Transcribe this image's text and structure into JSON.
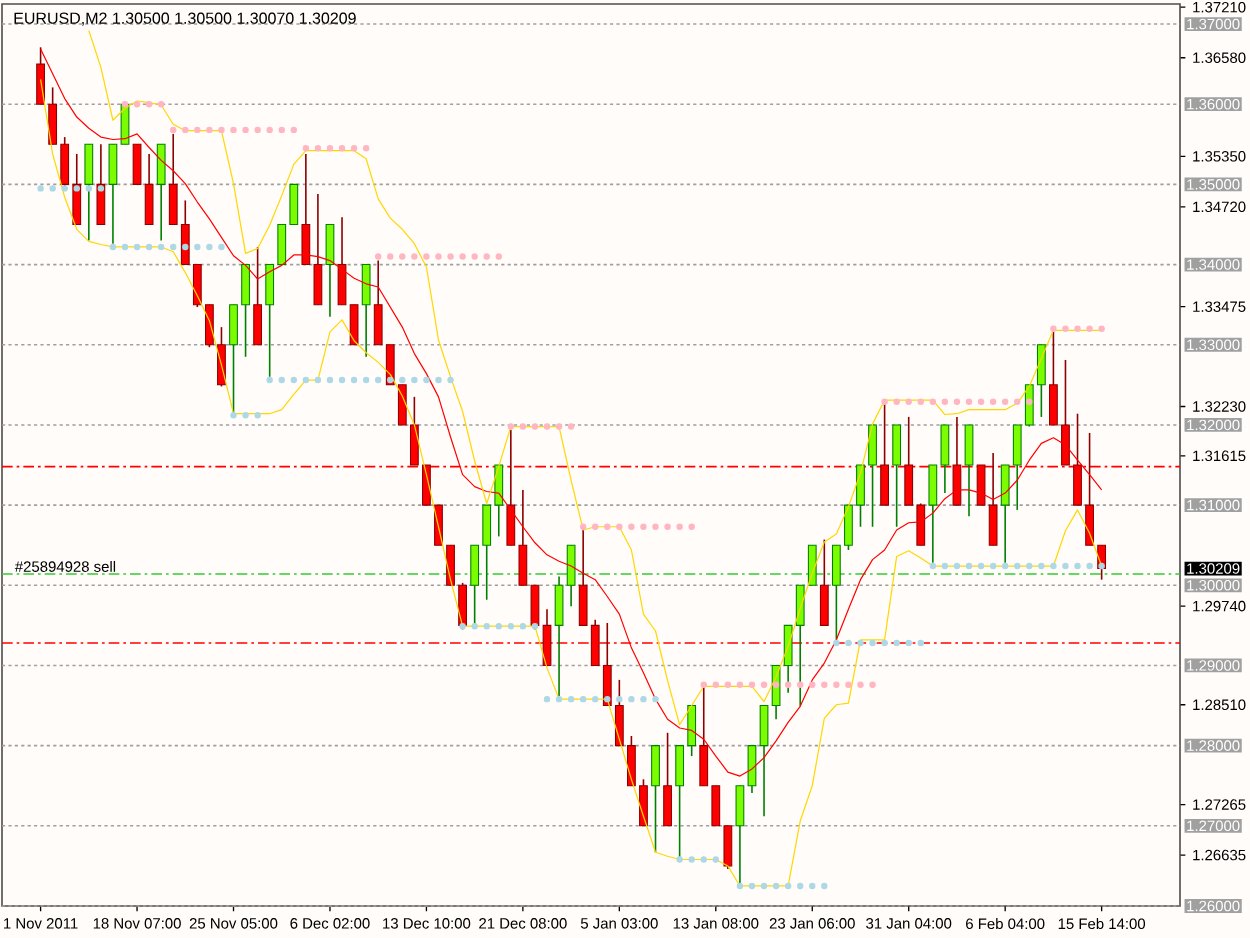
{
  "chart_data": {
    "type": "candlestick",
    "title": "EURUSD,M2 1.30500 1.30500 1.30070 1.30209",
    "categories": [
      "1 Nov 2011",
      null,
      null,
      null,
      null,
      null,
      null,
      null,
      "18 Nov 07:00",
      null,
      null,
      null,
      null,
      null,
      null,
      null,
      "25 Nov 05:00",
      null,
      null,
      null,
      null,
      null,
      null,
      null,
      "6 Dec 02:00",
      null,
      null,
      null,
      null,
      null,
      null,
      null,
      "13 Dec 10:00",
      null,
      null,
      null,
      null,
      null,
      null,
      null,
      "21 Dec 08:00",
      null,
      null,
      null,
      null,
      null,
      null,
      null,
      "5 Jan 03:00",
      null,
      null,
      null,
      null,
      null,
      null,
      null,
      "13 Jan 08:00",
      null,
      null,
      null,
      null,
      null,
      null,
      null,
      "23 Jan 06:00",
      null,
      null,
      null,
      null,
      null,
      null,
      null,
      "31 Jan 04:00",
      null,
      null,
      null,
      null,
      null,
      null,
      null,
      "6 Feb 04:00",
      null,
      null,
      null,
      null,
      null,
      null,
      null,
      "15 Feb 14:00"
    ],
    "ohlc": [
      [
        1.365,
        1.3671,
        1.36,
        1.36
      ],
      [
        1.36,
        1.3621,
        1.355,
        1.355
      ],
      [
        1.355,
        1.3559,
        1.3497,
        1.35
      ],
      [
        1.35,
        1.3538,
        1.345,
        1.345
      ],
      [
        1.35,
        1.355,
        1.343,
        1.355
      ],
      [
        1.35,
        1.355,
        1.345,
        1.345
      ],
      [
        1.35,
        1.355,
        1.3426,
        1.355
      ],
      [
        1.355,
        1.36,
        1.355,
        1.36
      ],
      [
        1.355,
        1.355,
        1.35,
        1.35
      ],
      [
        1.35,
        1.3538,
        1.345,
        1.345
      ],
      [
        1.35,
        1.355,
        1.343,
        1.355
      ],
      [
        1.35,
        1.3563,
        1.345,
        1.345
      ],
      [
        1.345,
        1.348,
        1.34,
        1.34
      ],
      [
        1.34,
        1.34,
        1.3347,
        1.335
      ],
      [
        1.335,
        1.335,
        1.3297,
        1.33
      ],
      [
        1.33,
        1.3322,
        1.3248,
        1.325
      ],
      [
        1.33,
        1.335,
        1.3214,
        1.335
      ],
      [
        1.335,
        1.34,
        1.3285,
        1.34
      ],
      [
        1.335,
        1.3422,
        1.33,
        1.33
      ],
      [
        1.335,
        1.34,
        1.326,
        1.34
      ],
      [
        1.34,
        1.345,
        1.34,
        1.345
      ],
      [
        1.345,
        1.35,
        1.345,
        1.35
      ],
      [
        1.345,
        1.3538,
        1.34,
        1.34
      ],
      [
        1.34,
        1.3488,
        1.335,
        1.335
      ],
      [
        1.34,
        1.345,
        1.3335,
        1.345
      ],
      [
        1.34,
        1.3459,
        1.335,
        1.335
      ],
      [
        1.335,
        1.335,
        1.33,
        1.33
      ],
      [
        1.335,
        1.34,
        1.3285,
        1.34
      ],
      [
        1.335,
        1.3405,
        1.33,
        1.33
      ],
      [
        1.33,
        1.33,
        1.325,
        1.325
      ],
      [
        1.325,
        1.325,
        1.32,
        1.32
      ],
      [
        1.32,
        1.3235,
        1.315,
        1.315
      ],
      [
        1.315,
        1.315,
        1.31,
        1.31
      ],
      [
        1.31,
        1.31,
        1.305,
        1.305
      ],
      [
        1.305,
        1.305,
        1.3,
        1.3
      ],
      [
        1.3,
        1.3003,
        1.2945,
        1.295
      ],
      [
        1.3,
        1.305,
        1.295,
        1.305
      ],
      [
        1.305,
        1.31,
        1.2982,
        1.31
      ],
      [
        1.31,
        1.315,
        1.3061,
        1.315
      ],
      [
        1.31,
        1.3194,
        1.305,
        1.305
      ],
      [
        1.305,
        1.3119,
        1.3,
        1.3
      ],
      [
        1.3,
        1.3,
        1.2945,
        1.295
      ],
      [
        1.295,
        1.297,
        1.29,
        1.29
      ],
      [
        1.295,
        1.3011,
        1.2862,
        1.3
      ],
      [
        1.3,
        1.305,
        1.2974,
        1.305
      ],
      [
        1.3,
        1.3073,
        1.295,
        1.295
      ],
      [
        1.295,
        1.2957,
        1.29,
        1.29
      ],
      [
        1.29,
        1.2953,
        1.285,
        1.285
      ],
      [
        1.285,
        1.2882,
        1.28,
        1.28
      ],
      [
        1.28,
        1.2812,
        1.275,
        1.275
      ],
      [
        1.275,
        1.2758,
        1.27,
        1.27
      ],
      [
        1.275,
        1.28,
        1.2667,
        1.28
      ],
      [
        1.275,
        1.2816,
        1.27,
        1.27
      ],
      [
        1.275,
        1.28,
        1.2658,
        1.28
      ],
      [
        1.28,
        1.285,
        1.2787,
        1.285
      ],
      [
        1.28,
        1.2874,
        1.275,
        1.275
      ],
      [
        1.275,
        1.275,
        1.27,
        1.27
      ],
      [
        1.27,
        1.27,
        1.2646,
        1.265
      ],
      [
        1.27,
        1.275,
        1.2625,
        1.275
      ],
      [
        1.275,
        1.28,
        1.2741,
        1.28
      ],
      [
        1.28,
        1.285,
        1.2712,
        1.285
      ],
      [
        1.285,
        1.29,
        1.2833,
        1.29
      ],
      [
        1.29,
        1.295,
        1.2866,
        1.295
      ],
      [
        1.295,
        1.3,
        1.2849,
        1.3
      ],
      [
        1.3,
        1.305,
        1.3,
        1.305
      ],
      [
        1.3,
        1.3057,
        1.295,
        1.295
      ],
      [
        1.3,
        1.305,
        1.2932,
        1.305
      ],
      [
        1.305,
        1.31,
        1.3044,
        1.31
      ],
      [
        1.31,
        1.315,
        1.3073,
        1.315
      ],
      [
        1.315,
        1.32,
        1.3073,
        1.32
      ],
      [
        1.315,
        1.3227,
        1.31,
        1.31
      ],
      [
        1.315,
        1.32,
        1.3073,
        1.32
      ],
      [
        1.315,
        1.321,
        1.31,
        1.31
      ],
      [
        1.31,
        1.3102,
        1.305,
        1.305
      ],
      [
        1.31,
        1.315,
        1.3028,
        1.315
      ],
      [
        1.315,
        1.32,
        1.3115,
        1.32
      ],
      [
        1.315,
        1.321,
        1.31,
        1.31
      ],
      [
        1.315,
        1.32,
        1.3086,
        1.32
      ],
      [
        1.315,
        1.315,
        1.31,
        1.31
      ],
      [
        1.31,
        1.3165,
        1.305,
        1.305
      ],
      [
        1.31,
        1.315,
        1.3028,
        1.315
      ],
      [
        1.315,
        1.32,
        1.3094,
        1.32
      ],
      [
        1.32,
        1.325,
        1.3198,
        1.325
      ],
      [
        1.325,
        1.33,
        1.321,
        1.33
      ],
      [
        1.325,
        1.3318,
        1.32,
        1.32
      ],
      [
        1.32,
        1.3281,
        1.315,
        1.315
      ],
      [
        1.315,
        1.3214,
        1.31,
        1.31
      ],
      [
        1.31,
        1.319,
        1.305,
        1.305
      ],
      [
        1.305,
        1.305,
        1.3007,
        1.30209
      ]
    ],
    "series": [
      {
        "type": "line",
        "color": "#ff0000",
        "values": [
          1.3669,
          1.3638,
          1.3607,
          1.3584,
          1.357,
          1.3559,
          1.3556,
          1.3557,
          1.3563,
          1.3546,
          1.353,
          1.3517,
          1.3501,
          1.3478,
          1.3457,
          1.3434,
          1.3411,
          1.3399,
          1.3382,
          1.3391,
          1.3399,
          1.3412,
          1.3412,
          1.341,
          1.3405,
          1.3394,
          1.3383,
          1.3376,
          1.3372,
          1.3347,
          1.3322,
          1.3289,
          1.3264,
          1.3235,
          1.3185,
          1.3138,
          1.3123,
          1.3117,
          1.3115,
          1.3094,
          1.3073,
          1.3053,
          1.3038,
          1.303,
          1.3024,
          1.3015,
          1.3007,
          1.2986,
          1.2964,
          1.2922,
          1.2891,
          1.2858,
          1.2833,
          1.2822,
          1.2819,
          1.2808,
          1.2787,
          1.2767,
          1.2762,
          1.2771,
          1.2785,
          1.2806,
          1.2829,
          1.2849,
          1.2882,
          1.2903,
          1.2932,
          1.297,
          1.3007,
          1.3032,
          1.3044,
          1.3069,
          1.3078,
          1.3079,
          1.309,
          1.3108,
          1.3119,
          1.3119,
          1.3115,
          1.3107,
          1.3115,
          1.3131,
          1.3156,
          1.3177,
          1.3184,
          1.3175,
          1.3156,
          1.3138,
          1.3119
        ]
      },
      {
        "type": "line",
        "color": "#ffd700",
        "values": [
          null,
          null,
          null,
          null,
          1.3692,
          1.3646,
          1.358,
          1.3595,
          1.3604,
          1.3602,
          1.3599,
          1.3575,
          1.3567,
          1.3567,
          1.3567,
          1.3567,
          1.3501,
          1.3414,
          1.342,
          1.3449,
          1.3486,
          1.3525,
          1.3542,
          1.3542,
          1.3542,
          1.3542,
          1.3542,
          1.3532,
          1.3482,
          1.3458,
          1.3444,
          1.3426,
          1.3397,
          1.3306,
          1.326,
          1.3217,
          1.3155,
          1.3102,
          1.3148,
          1.3198,
          1.3198,
          1.3198,
          1.3198,
          1.3198,
          1.3131,
          1.3069,
          1.3073,
          1.3073,
          1.3073,
          1.3044,
          1.2964,
          1.2943,
          1.2881,
          1.2826,
          1.285,
          1.2874,
          1.2874,
          1.2874,
          1.2874,
          1.2874,
          1.2855,
          1.2886,
          1.2924,
          1.2971,
          1.3015,
          1.3054,
          1.3064,
          1.3098,
          1.314,
          1.3201,
          1.3231,
          1.3231,
          1.3231,
          1.3231,
          1.3231,
          1.3213,
          1.3214,
          1.3219,
          1.3219,
          1.3219,
          1.3219,
          1.3227,
          1.3248,
          1.3283,
          1.3318,
          1.3318,
          1.3318,
          1.3318,
          1.3318
        ]
      },
      {
        "type": "line",
        "color": "#ffd700",
        "values": [
          1.3631,
          1.3538,
          1.3484,
          1.3444,
          1.3429,
          1.3425,
          1.3422,
          1.3422,
          1.3422,
          1.3422,
          1.3422,
          1.3416,
          1.339,
          1.3361,
          1.333,
          1.3275,
          1.3214,
          1.3214,
          1.3214,
          1.3214,
          1.3219,
          1.3238,
          1.3256,
          1.3256,
          1.3316,
          1.3331,
          1.3305,
          1.329,
          1.3278,
          1.3263,
          1.3236,
          1.32,
          1.3138,
          1.3073,
          1.3007,
          1.2949,
          1.2949,
          1.2949,
          1.2949,
          1.2949,
          1.2949,
          1.2949,
          1.2897,
          1.2858,
          1.2858,
          1.2858,
          1.2858,
          1.2858,
          1.2808,
          1.2758,
          1.2712,
          1.2667,
          1.2662,
          1.2658,
          1.2658,
          1.2658,
          1.2658,
          1.265,
          1.2625,
          1.2625,
          1.2625,
          1.2625,
          1.2625,
          1.2706,
          1.275,
          1.2834,
          1.2851,
          1.2853,
          1.2932,
          1.2932,
          1.2932,
          1.3036,
          1.3043,
          1.3034,
          1.3024,
          1.3024,
          1.3024,
          1.3024,
          1.3024,
          1.3024,
          1.3024,
          1.3024,
          1.3024,
          1.3024,
          1.3024,
          1.3068,
          1.3094,
          1.3065,
          1.3024
        ]
      },
      {
        "type": "scatter",
        "color": "#ffb6c1",
        "values": [
          null,
          null,
          null,
          null,
          null,
          null,
          null,
          1.36,
          1.36,
          1.36,
          1.36,
          1.3568,
          1.3568,
          1.3568,
          1.3568,
          1.3568,
          1.3568,
          1.3568,
          1.3568,
          1.3568,
          1.3568,
          1.3568,
          1.3545,
          1.3545,
          1.3545,
          1.3545,
          1.3545,
          1.3545,
          1.341,
          1.341,
          1.341,
          1.341,
          1.341,
          1.341,
          1.341,
          1.341,
          1.341,
          1.341,
          1.341,
          1.3198,
          1.3198,
          1.3198,
          1.3198,
          1.3198,
          1.3198,
          1.3073,
          1.3073,
          1.3073,
          1.3073,
          1.3073,
          1.3073,
          1.3073,
          1.3073,
          1.3073,
          1.3073,
          1.2876,
          1.2876,
          1.2876,
          1.2876,
          1.2876,
          1.2876,
          1.2876,
          1.2876,
          1.2876,
          1.2876,
          1.2876,
          1.2876,
          1.2876,
          1.2876,
          1.2876,
          1.3229,
          1.3229,
          1.3229,
          1.3229,
          1.3229,
          1.3229,
          1.3229,
          1.3229,
          1.3229,
          1.3229,
          1.3229,
          1.3229,
          1.3229,
          null,
          1.332,
          1.332,
          1.332,
          1.332,
          1.332
        ]
      },
      {
        "type": "scatter",
        "color": "#add8e6",
        "values": [
          1.3495,
          1.3495,
          1.3495,
          1.3495,
          1.3495,
          1.3495,
          1.3422,
          1.3422,
          1.3422,
          1.3422,
          1.3422,
          1.3422,
          1.3422,
          1.3422,
          1.3422,
          1.3422,
          1.3212,
          1.3212,
          1.3212,
          1.3256,
          1.3256,
          1.3256,
          1.3256,
          1.3256,
          1.3256,
          1.3256,
          1.3256,
          1.3256,
          1.3256,
          1.3256,
          1.3256,
          1.3256,
          1.3256,
          1.3256,
          1.3256,
          1.2949,
          1.2949,
          1.2949,
          1.2949,
          1.2949,
          1.2949,
          1.2949,
          1.2858,
          1.2858,
          1.2858,
          1.2858,
          1.2858,
          1.2858,
          1.2858,
          1.2858,
          1.2858,
          1.2858,
          null,
          1.2658,
          1.2658,
          1.2658,
          1.2658,
          null,
          1.2625,
          1.2625,
          1.2625,
          1.2625,
          1.2625,
          1.2625,
          1.2625,
          1.2625,
          1.2928,
          1.2928,
          1.2928,
          1.2928,
          1.2928,
          1.2928,
          1.2928,
          1.2928,
          1.3024,
          1.3024,
          1.3024,
          1.3024,
          1.3024,
          1.3024,
          1.3024,
          1.3024,
          1.3024,
          1.3024,
          1.3024,
          1.3024,
          1.3024,
          1.3024,
          1.3024
        ]
      }
    ],
    "ylim": [
      1.26,
      1.3725
    ],
    "yticks": [
      {
        "value": 1.3721,
        "label": "1.37210"
      },
      {
        "value": 1.3658,
        "label": "1.36580"
      },
      {
        "value": 1.3535,
        "label": "1.35350"
      },
      {
        "value": 1.3472,
        "label": "1.34720"
      },
      {
        "value": 1.33475,
        "label": "1.33475"
      },
      {
        "value": 1.3223,
        "label": "1.32230"
      },
      {
        "value": 1.31615,
        "label": "1.31615"
      },
      {
        "value": 1.2974,
        "label": "1.29740"
      },
      {
        "value": 1.2851,
        "label": "1.28510"
      },
      {
        "value": 1.27265,
        "label": "1.27265"
      },
      {
        "value": 1.26635,
        "label": "1.26635"
      }
    ],
    "ref_lines": [
      {
        "axis": "y",
        "value": 1.37,
        "label": "1.37000",
        "color": "#a0a0a0",
        "line_style": "dotted"
      },
      {
        "axis": "y",
        "value": 1.36,
        "label": "1.36000",
        "color": "#a0a0a0",
        "line_style": "dotted"
      },
      {
        "axis": "y",
        "value": 1.35,
        "label": "1.35000",
        "color": "#a0a0a0",
        "line_style": "dotted"
      },
      {
        "axis": "y",
        "value": 1.34,
        "label": "1.34000",
        "color": "#a0a0a0",
        "line_style": "dotted"
      },
      {
        "axis": "y",
        "value": 1.33,
        "label": "1.33000",
        "color": "#a0a0a0",
        "line_style": "dotted"
      },
      {
        "axis": "y",
        "value": 1.32,
        "label": "1.32000",
        "color": "#a0a0a0",
        "line_style": "dotted"
      },
      {
        "axis": "y",
        "value": 1.31,
        "label": "1.31000",
        "color": "#a0a0a0",
        "line_style": "dotted"
      },
      {
        "axis": "y",
        "value": 1.3,
        "label": "1.30000",
        "color": "#a0a0a0",
        "line_style": "dotted"
      },
      {
        "axis": "y",
        "value": 1.29,
        "label": "1.29000",
        "color": "#a0a0a0",
        "line_style": "dotted"
      },
      {
        "axis": "y",
        "value": 1.28,
        "label": "1.28000",
        "color": "#a0a0a0",
        "line_style": "dotted"
      },
      {
        "axis": "y",
        "value": 1.27,
        "label": "1.27000",
        "color": "#a0a0a0",
        "line_style": "dotted"
      },
      {
        "axis": "y",
        "value": 1.26,
        "label": "1.26000",
        "color": "#a0a0a0",
        "line_style": "dotted"
      },
      {
        "axis": "y",
        "value": 1.3148,
        "color": "#ff0000",
        "line_style": "dashed"
      },
      {
        "axis": "y",
        "value": 1.2928,
        "color": "#ff0000",
        "line_style": "dashed"
      },
      {
        "axis": "y",
        "value": 1.3014,
        "label": "#25894928 sell",
        "color": "#33cc33",
        "line_style": "dashed"
      }
    ],
    "annotations": [
      "1.30209"
    ]
  }
}
